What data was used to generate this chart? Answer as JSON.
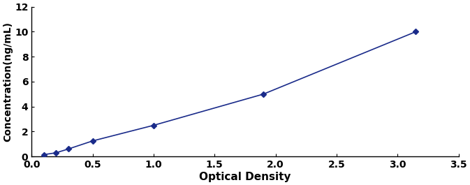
{
  "x": [
    0.1,
    0.2,
    0.3,
    0.5,
    1.0,
    1.9,
    3.15
  ],
  "y": [
    0.15,
    0.3,
    0.6,
    1.25,
    2.5,
    5.0,
    10.0
  ],
  "xlabel": "Optical Density",
  "ylabel": "Concentration(ng/mL)",
  "xlim": [
    0,
    3.5
  ],
  "ylim": [
    0,
    12
  ],
  "xticks": [
    0,
    0.5,
    1.0,
    1.5,
    2.0,
    2.5,
    3.0,
    3.5
  ],
  "yticks": [
    0,
    2,
    4,
    6,
    8,
    10,
    12
  ],
  "line_color": "#1a2b8a",
  "marker_color": "#1a2b8a",
  "marker": "D",
  "marker_size": 4,
  "line_width": 1.2,
  "xlabel_fontsize": 11,
  "ylabel_fontsize": 10,
  "tick_fontsize": 10,
  "background_color": "#ffffff",
  "xlabel_fontweight": "bold",
  "ylabel_fontweight": "bold",
  "tick_fontweight": "bold"
}
